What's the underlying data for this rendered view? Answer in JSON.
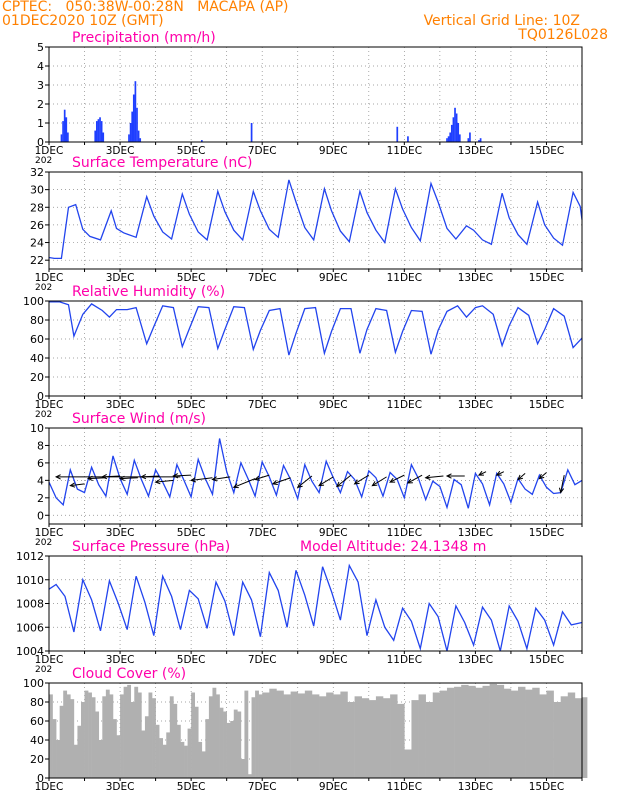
{
  "header": {
    "line1": "CPTEC:   050:38W-00:28N   MACAPA (AP)",
    "line2": "01DEC2020 10Z (GMT)",
    "grid_note": "Vertical Grid Line: 10Z",
    "model_code": "TQ0126L028",
    "text_color": "#ff8000",
    "title_color": "#ff00aa",
    "series_color": "#2244ee"
  },
  "x_tick_labels": [
    "1DEC",
    "3DEC",
    "5DEC",
    "7DEC",
    "9DEC",
    "11DEC",
    "13DEC",
    "15DEC"
  ],
  "x_year_stub": "202",
  "chart_data": [
    {
      "type": "bar",
      "title": "Precipitation (mm/h)",
      "ylim": [
        0,
        5
      ],
      "yticks": [
        0,
        1,
        2,
        3,
        4,
        5
      ],
      "color": "#1f3fff",
      "bursts": [
        {
          "x": 1.35,
          "values": [
            0.4,
            1.1,
            1.7,
            1.3,
            0.5
          ]
        },
        {
          "x": 2.3,
          "values": [
            0.6,
            1.1,
            1.2,
            1.3,
            1.1,
            0.5
          ]
        },
        {
          "x": 3.25,
          "values": [
            0.4,
            1.0,
            1.6,
            2.5,
            3.2,
            1.8,
            0.6,
            0.2
          ]
        },
        {
          "x": 5.3,
          "values": [
            0.1
          ]
        },
        {
          "x": 6.7,
          "values": [
            1.0
          ]
        },
        {
          "x": 10.8,
          "values": [
            0.8
          ]
        },
        {
          "x": 11.1,
          "values": [
            0.3
          ]
        },
        {
          "x": 12.2,
          "values": [
            0.2,
            0.3,
            0.5,
            0.9,
            1.3,
            1.8,
            1.5,
            1.0,
            0.4
          ]
        },
        {
          "x": 12.8,
          "values": [
            0.2,
            0.5
          ]
        },
        {
          "x": 13.1,
          "values": [
            0.1,
            0.2
          ]
        }
      ]
    },
    {
      "type": "line",
      "title": "Surface Temperature (nC)",
      "ylim": [
        21,
        32
      ],
      "yticks": [
        22,
        24,
        26,
        28,
        30,
        32
      ],
      "color": "#2244ee",
      "x": [
        1.0,
        1.15,
        1.35,
        1.55,
        1.75,
        1.95,
        2.15,
        2.45,
        2.75,
        2.9,
        3.1,
        3.45,
        3.75,
        3.95,
        4.2,
        4.45,
        4.75,
        4.95,
        5.2,
        5.45,
        5.75,
        5.95,
        6.2,
        6.45,
        6.75,
        6.95,
        7.2,
        7.45,
        7.75,
        7.95,
        8.2,
        8.45,
        8.75,
        8.95,
        9.2,
        9.45,
        9.75,
        9.95,
        10.2,
        10.45,
        10.75,
        10.95,
        11.2,
        11.45,
        11.75,
        11.95,
        12.2,
        12.45,
        12.75,
        12.95,
        13.2,
        13.45,
        13.75,
        13.95,
        14.2,
        14.45,
        14.75,
        14.95,
        15.2,
        15.45,
        15.75,
        15.95,
        16.0
      ],
      "y": [
        22.3,
        22.2,
        22.2,
        28.0,
        28.3,
        25.5,
        24.7,
        24.3,
        27.6,
        25.6,
        25.1,
        24.6,
        29.2,
        27.0,
        25.2,
        24.4,
        29.5,
        27.2,
        25.2,
        24.3,
        29.8,
        27.5,
        25.4,
        24.3,
        29.8,
        27.6,
        25.5,
        24.6,
        31.1,
        28.6,
        25.7,
        24.3,
        30.1,
        27.6,
        25.3,
        24.1,
        29.8,
        27.4,
        25.4,
        24.0,
        30.1,
        27.8,
        25.7,
        24.2,
        30.7,
        28.6,
        25.6,
        24.4,
        25.9,
        25.4,
        24.3,
        23.8,
        29.6,
        26.8,
        24.9,
        23.8,
        28.6,
        26.0,
        24.5,
        23.7,
        29.7,
        28.1,
        26.6
      ]
    },
    {
      "type": "line",
      "title": "Relative Humidity (%)",
      "ylim": [
        0,
        100
      ],
      "yticks": [
        0,
        20,
        40,
        60,
        80,
        100
      ],
      "color": "#2244ee",
      "x": [
        1.0,
        1.3,
        1.55,
        1.7,
        1.95,
        2.2,
        2.5,
        2.7,
        2.9,
        3.2,
        3.45,
        3.75,
        3.95,
        4.2,
        4.5,
        4.75,
        4.95,
        5.2,
        5.5,
        5.75,
        5.95,
        6.2,
        6.5,
        6.75,
        6.95,
        7.2,
        7.5,
        7.75,
        7.95,
        8.2,
        8.5,
        8.75,
        8.95,
        9.2,
        9.5,
        9.75,
        9.95,
        10.2,
        10.5,
        10.75,
        10.95,
        11.2,
        11.5,
        11.75,
        11.95,
        12.2,
        12.5,
        12.75,
        13.0,
        13.2,
        13.5,
        13.75,
        13.95,
        14.2,
        14.5,
        14.75,
        14.95,
        15.2,
        15.5,
        15.75,
        16.0
      ],
      "y": [
        99,
        99,
        96,
        63,
        86,
        97,
        90,
        83,
        91,
        91,
        93,
        55,
        73,
        95,
        93,
        52,
        71,
        94,
        93,
        50,
        70,
        94,
        93,
        49,
        69,
        90,
        92,
        43,
        66,
        92,
        93,
        45,
        68,
        92,
        92,
        45,
        70,
        92,
        90,
        46,
        68,
        90,
        89,
        44,
        69,
        89,
        95,
        83,
        93,
        95,
        86,
        53,
        74,
        93,
        85,
        55,
        70,
        92,
        84,
        51,
        61
      ]
    },
    {
      "type": "line",
      "title": "Surface Wind (m/s)",
      "ylim": [
        -1,
        10
      ],
      "yticks": [
        0,
        2,
        4,
        6,
        8,
        10
      ],
      "color": "#2244ee",
      "x": [
        1.0,
        1.2,
        1.4,
        1.6,
        1.8,
        2.0,
        2.2,
        2.4,
        2.6,
        2.8,
        3.0,
        3.2,
        3.4,
        3.6,
        3.8,
        4.0,
        4.2,
        4.4,
        4.6,
        4.8,
        5.0,
        5.2,
        5.4,
        5.6,
        5.8,
        6.0,
        6.2,
        6.4,
        6.6,
        6.8,
        7.0,
        7.2,
        7.4,
        7.6,
        7.8,
        8.0,
        8.2,
        8.4,
        8.6,
        8.8,
        9.0,
        9.2,
        9.4,
        9.6,
        9.8,
        10.0,
        10.2,
        10.4,
        10.6,
        10.8,
        11.0,
        11.2,
        11.4,
        11.6,
        11.8,
        12.0,
        12.2,
        12.4,
        12.6,
        12.8,
        13.0,
        13.2,
        13.4,
        13.6,
        13.8,
        14.0,
        14.2,
        14.4,
        14.6,
        14.8,
        15.0,
        15.2,
        15.4,
        15.6,
        15.8,
        16.0
      ],
      "y": [
        3.8,
        2.0,
        1.2,
        5.2,
        3.0,
        2.6,
        5.5,
        3.5,
        2.2,
        6.8,
        4.2,
        2.4,
        6.3,
        4.1,
        2.2,
        5.2,
        3.8,
        2.1,
        5.8,
        4.0,
        2.1,
        6.4,
        4.2,
        2.4,
        8.8,
        5.0,
        2.6,
        6.0,
        4.2,
        2.2,
        6.1,
        4.4,
        2.3,
        5.7,
        4.1,
        1.9,
        5.8,
        3.9,
        2.6,
        6.2,
        4.3,
        2.6,
        5.0,
        4.1,
        2.1,
        5.1,
        4.3,
        2.2,
        4.9,
        4.1,
        2.0,
        5.8,
        4.2,
        1.8,
        3.9,
        3.3,
        0.9,
        4.1,
        3.5,
        0.8,
        4.8,
        3.6,
        1.2,
        4.8,
        3.6,
        1.5,
        4.2,
        3.0,
        2.4,
        4.6,
        3.2,
        2.5,
        2.6,
        5.2,
        3.5,
        4.0
      ],
      "arrows": [
        {
          "x": 1.2,
          "from": [
            4.7,
            4.4
          ],
          "to": [
            1.2,
            4.4
          ]
        },
        {
          "x": 1.7,
          "from": [
            2.0,
            3.6
          ],
          "to": [
            1.6,
            3.4
          ]
        },
        {
          "x": 2.3,
          "from": [
            2.6,
            4.3
          ],
          "to": [
            2.1,
            4.2
          ]
        },
        {
          "x": 2.8,
          "from": [
            3.0,
            4.5
          ],
          "to": [
            2.5,
            4.4
          ]
        },
        {
          "x": 3.3,
          "from": [
            3.5,
            4.3
          ],
          "to": [
            3.0,
            4.2
          ]
        },
        {
          "x": 3.8,
          "from": [
            4.1,
            4.5
          ],
          "to": [
            3.6,
            4.4
          ]
        },
        {
          "x": 4.3,
          "from": [
            4.5,
            4.0
          ],
          "to": [
            4.0,
            3.8
          ]
        },
        {
          "x": 4.8,
          "from": [
            5.0,
            4.6
          ],
          "to": [
            4.5,
            4.5
          ]
        },
        {
          "x": 5.3,
          "from": [
            5.6,
            4.3
          ],
          "to": [
            5.0,
            4.0
          ]
        },
        {
          "x": 5.8,
          "from": [
            6.1,
            4.4
          ],
          "to": [
            5.6,
            4.1
          ]
        },
        {
          "x": 6.4,
          "from": [
            6.8,
            4.2
          ],
          "to": [
            6.2,
            3.2
          ]
        },
        {
          "x": 7.0,
          "from": [
            7.2,
            4.6
          ],
          "to": [
            6.8,
            4.1
          ]
        },
        {
          "x": 7.6,
          "from": [
            7.8,
            4.3
          ],
          "to": [
            7.3,
            3.6
          ]
        },
        {
          "x": 8.2,
          "from": [
            8.4,
            4.5
          ],
          "to": [
            8.0,
            3.2
          ]
        },
        {
          "x": 8.8,
          "from": [
            9.0,
            4.4
          ],
          "to": [
            8.6,
            3.4
          ]
        },
        {
          "x": 9.3,
          "from": [
            9.5,
            4.6
          ],
          "to": [
            9.1,
            3.3
          ]
        },
        {
          "x": 9.8,
          "from": [
            10.0,
            4.6
          ],
          "to": [
            9.6,
            3.6
          ]
        },
        {
          "x": 10.3,
          "from": [
            10.5,
            4.4
          ],
          "to": [
            10.1,
            3.4
          ]
        },
        {
          "x": 10.8,
          "from": [
            11.0,
            4.6
          ],
          "to": [
            10.6,
            3.8
          ]
        },
        {
          "x": 11.3,
          "from": [
            11.5,
            4.6
          ],
          "to": [
            11.1,
            3.7
          ]
        },
        {
          "x": 11.8,
          "from": [
            12.1,
            4.5
          ],
          "to": [
            11.6,
            4.3
          ]
        },
        {
          "x": 12.4,
          "from": [
            12.7,
            4.5
          ],
          "to": [
            12.2,
            4.5
          ]
        },
        {
          "x": 13.2,
          "from": [
            13.3,
            5.0
          ],
          "to": [
            13.1,
            4.6
          ]
        },
        {
          "x": 13.7,
          "from": [
            13.8,
            5.0
          ],
          "to": [
            13.6,
            4.6
          ]
        },
        {
          "x": 14.3,
          "from": [
            14.4,
            4.8
          ],
          "to": [
            14.2,
            4.1
          ]
        },
        {
          "x": 14.9,
          "from": [
            15.0,
            4.9
          ],
          "to": [
            14.8,
            4.2
          ]
        },
        {
          "x": 15.4,
          "from": [
            15.5,
            4.6
          ],
          "to": [
            15.4,
            2.6
          ]
        }
      ]
    },
    {
      "type": "line",
      "title": "Surface Pressure (hPa)",
      "subtitle": "Model Altitude: 24.1348 m",
      "ylim": [
        1004,
        1012
      ],
      "yticks": [
        1004,
        1006,
        1008,
        1010,
        1012
      ],
      "color": "#2244ee",
      "x": [
        1.0,
        1.2,
        1.45,
        1.7,
        1.95,
        2.2,
        2.45,
        2.7,
        2.95,
        3.2,
        3.45,
        3.7,
        3.95,
        4.2,
        4.45,
        4.7,
        4.95,
        5.2,
        5.45,
        5.7,
        5.95,
        6.2,
        6.45,
        6.7,
        6.95,
        7.2,
        7.45,
        7.7,
        7.95,
        8.2,
        8.45,
        8.7,
        8.95,
        9.2,
        9.45,
        9.7,
        9.95,
        10.2,
        10.45,
        10.7,
        10.95,
        11.2,
        11.45,
        11.7,
        11.95,
        12.2,
        12.45,
        12.7,
        12.95,
        13.2,
        13.45,
        13.7,
        13.95,
        14.2,
        14.45,
        14.7,
        14.95,
        15.2,
        15.45,
        15.7,
        16.0
      ],
      "y": [
        1009.2,
        1009.6,
        1008.6,
        1005.6,
        1010.0,
        1008.3,
        1005.7,
        1009.9,
        1008.0,
        1005.8,
        1010.3,
        1008.1,
        1005.3,
        1010.3,
        1008.6,
        1005.8,
        1009.1,
        1008.4,
        1005.9,
        1009.8,
        1008.2,
        1005.3,
        1009.8,
        1008.3,
        1005.2,
        1010.6,
        1009.1,
        1006.0,
        1010.8,
        1008.7,
        1006.1,
        1011.1,
        1009.0,
        1006.6,
        1011.2,
        1009.8,
        1005.3,
        1008.3,
        1006.0,
        1004.9,
        1007.6,
        1006.5,
        1004.2,
        1008.0,
        1006.9,
        1004.0,
        1007.8,
        1006.4,
        1004.5,
        1007.7,
        1006.6,
        1004.0,
        1007.8,
        1006.5,
        1004.2,
        1007.6,
        1006.6,
        1004.5,
        1007.3,
        1006.2,
        1006.4
      ]
    },
    {
      "type": "area",
      "title": "Cloud Cover (%)",
      "ylim": [
        0,
        100
      ],
      "yticks": [
        0,
        20,
        40,
        60,
        80,
        100
      ],
      "color": "#b0b0b0",
      "x": [
        1.0,
        1.1,
        1.2,
        1.3,
        1.4,
        1.5,
        1.6,
        1.7,
        1.8,
        1.9,
        2.0,
        2.1,
        2.2,
        2.3,
        2.4,
        2.5,
        2.6,
        2.7,
        2.8,
        2.9,
        3.0,
        3.1,
        3.2,
        3.3,
        3.4,
        3.5,
        3.6,
        3.7,
        3.8,
        3.9,
        4.0,
        4.1,
        4.2,
        4.3,
        4.4,
        4.5,
        4.6,
        4.7,
        4.8,
        4.9,
        5.0,
        5.1,
        5.2,
        5.3,
        5.4,
        5.5,
        5.6,
        5.7,
        5.8,
        5.9,
        6.0,
        6.1,
        6.2,
        6.3,
        6.4,
        6.5,
        6.6,
        6.7,
        6.8,
        6.9,
        7.0,
        7.2,
        7.4,
        7.6,
        7.8,
        8.0,
        8.2,
        8.4,
        8.6,
        8.8,
        9.0,
        9.2,
        9.4,
        9.6,
        9.8,
        10.0,
        10.2,
        10.4,
        10.6,
        10.8,
        11.0,
        11.2,
        11.4,
        11.6,
        11.8,
        12.0,
        12.2,
        12.4,
        12.6,
        12.8,
        13.0,
        13.2,
        13.4,
        13.6,
        13.8,
        14.0,
        14.2,
        14.4,
        14.6,
        14.8,
        15.0,
        15.2,
        15.4,
        15.6,
        15.8,
        16.0
      ],
      "y": [
        88,
        62,
        40,
        76,
        92,
        88,
        83,
        35,
        55,
        80,
        92,
        90,
        85,
        70,
        40,
        86,
        93,
        88,
        62,
        45,
        88,
        96,
        98,
        80,
        96,
        90,
        50,
        65,
        90,
        84,
        56,
        42,
        35,
        48,
        86,
        78,
        56,
        38,
        34,
        52,
        90,
        75,
        38,
        28,
        62,
        86,
        95,
        88,
        74,
        70,
        58,
        60,
        72,
        70,
        20,
        92,
        4,
        85,
        92,
        88,
        90,
        94,
        92,
        88,
        91,
        89,
        92,
        88,
        86,
        90,
        88,
        91,
        80,
        86,
        84,
        82,
        86,
        84,
        88,
        78,
        30,
        82,
        88,
        80,
        90,
        92,
        95,
        96,
        98,
        97,
        95,
        97,
        99,
        98,
        94,
        92,
        96,
        93,
        95,
        88,
        92,
        80,
        86,
        90,
        84,
        85
      ]
    }
  ]
}
